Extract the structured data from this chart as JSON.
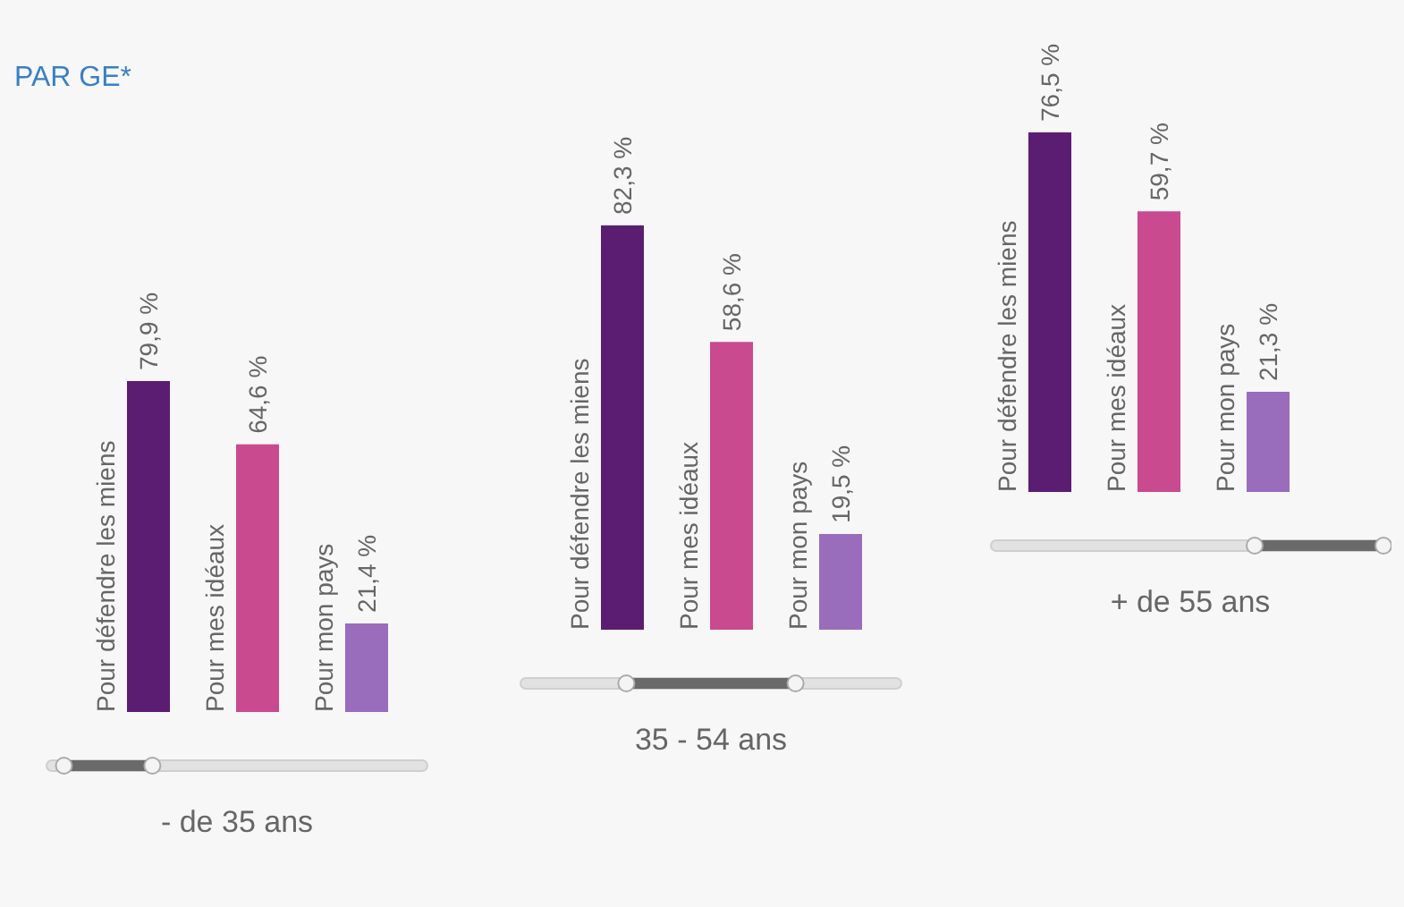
{
  "chart_data": [
    {
      "type": "bar",
      "title": "PAR GE*",
      "categories": [
        "Pour défendre les miens",
        "Pour mes idéaux",
        "Pour mon pays"
      ],
      "values": [
        79.9,
        64.6,
        21.4
      ],
      "colors": [
        "#5b1d72",
        "#c94a8e",
        "#9a6cbc"
      ],
      "value_labels": [
        "79,9 %",
        "64,6 %",
        "21,4 %"
      ],
      "xlabel": "- de 35 ans"
    },
    {
      "type": "bar",
      "categories": [
        "Pour défendre les miens",
        "Pour mes idéaux",
        "Pour mon pays"
      ],
      "values": [
        82.3,
        58.6,
        19.5
      ],
      "colors": [
        "#5b1d72",
        "#c94a8e",
        "#9a6cbc"
      ],
      "value_labels": [
        "82,3 %",
        "58,6 %",
        "19,5 %"
      ],
      "xlabel": "35 - 54 ans"
    },
    {
      "type": "bar",
      "categories": [
        "Pour défendre les miens",
        "Pour mes idéaux",
        "Pour mon pays"
      ],
      "values": [
        76.5,
        59.7,
        21.3
      ],
      "colors": [
        "#5b1d72",
        "#c94a8e",
        "#9a6cbc"
      ],
      "value_labels": [
        "76,5 %",
        "59,7 %",
        "21,3 %"
      ],
      "xlabel": "+ de 55 ans"
    }
  ]
}
